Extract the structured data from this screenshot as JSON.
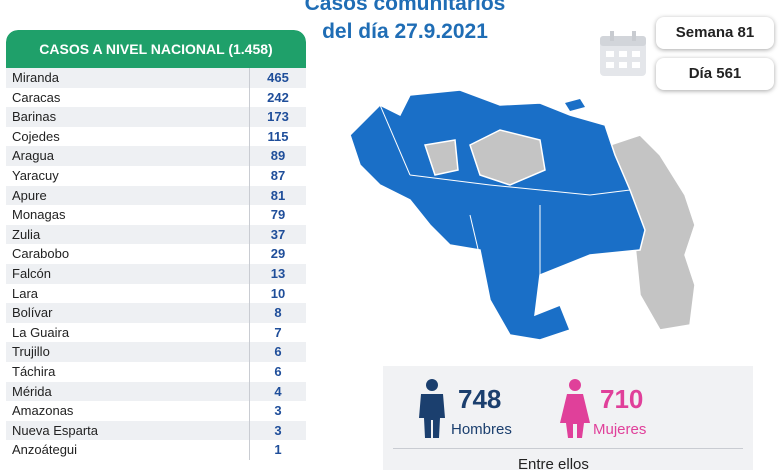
{
  "header": {
    "title_line1": "Casos comunitarios",
    "title_line2": "del día 27.9.2021"
  },
  "badges": {
    "week": "Semana 81",
    "day": "Día 561"
  },
  "table": {
    "title": "CASOS A NIVEL NACIONAL (1.458)",
    "rows": [
      [
        "Miranda",
        465
      ],
      [
        "Caracas",
        242
      ],
      [
        "Barinas",
        173
      ],
      [
        "Cojedes",
        115
      ],
      [
        "Aragua",
        89
      ],
      [
        "Yaracuy",
        87
      ],
      [
        "Apure",
        81
      ],
      [
        "Monagas",
        79
      ],
      [
        "Zulia",
        37
      ],
      [
        "Carabobo",
        29
      ],
      [
        "Falcón",
        13
      ],
      [
        "Lara",
        10
      ],
      [
        "Bolívar",
        8
      ],
      [
        "La Guaira",
        7
      ],
      [
        "Trujillo",
        6
      ],
      [
        "Táchira",
        6
      ],
      [
        "Mérida",
        4
      ],
      [
        "Amazonas",
        3
      ],
      [
        "Nueva Esparta",
        3
      ],
      [
        "Anzoátegui",
        1
      ]
    ]
  },
  "gender": {
    "men_count": 748,
    "men_label": "Hombres",
    "women_count": 710,
    "women_label": "Mujeres",
    "note": "Entre ellos"
  }
}
